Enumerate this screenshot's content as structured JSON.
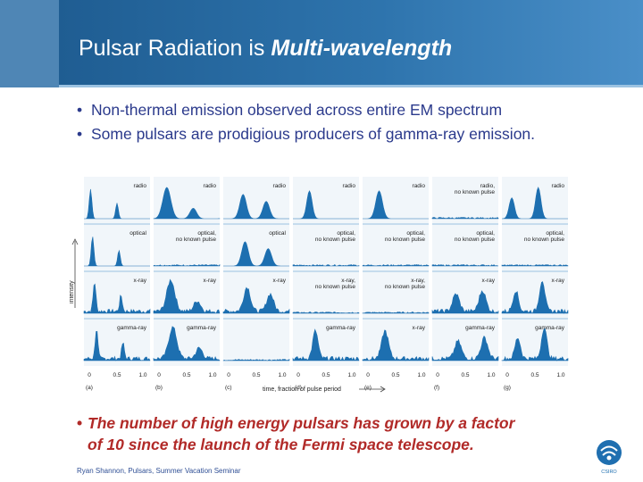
{
  "title": {
    "plain": "Pulsar Radiation is ",
    "emphasis": "Multi-wavelength"
  },
  "bullets": [
    "Non-thermal emission observed across entire EM spectrum",
    "Some pulsars are prodigious producers of gamma-ray emission."
  ],
  "bullet_symbol": "•",
  "figure": {
    "y_axis_label": "intensity",
    "x_axis_label": "time, fraction of pulse period",
    "tick_labels": [
      "0",
      "0.5",
      "1.0"
    ],
    "panel_letters": [
      "(a)",
      "(b)",
      "(c)",
      "(d)",
      "(e)",
      "(f)",
      "(g)"
    ],
    "panels": [
      [
        "radio",
        "optical",
        "x-ray",
        "gamma-ray"
      ],
      [
        "radio",
        "optical, no known pulse",
        "x-ray",
        "gamma-ray"
      ],
      [
        "radio",
        "optical",
        "x-ray",
        ""
      ],
      [
        "radio",
        "optical, no known pulse",
        "x-ray, no known pulse",
        "gamma-ray"
      ],
      [
        "radio",
        "optical, no known pulse",
        "x-ray, no known pulse",
        "x-ray"
      ],
      [
        "radio, no known pulse",
        "optical, no known pulse",
        "x-ray",
        "gamma-ray"
      ],
      [
        "radio",
        "optical, no known pulse",
        "x-ray",
        "gamma-ray"
      ]
    ],
    "colors": {
      "panel_bg": "#f1f6fa",
      "fill": "#1d6fb0",
      "divider": "#9cc2e0",
      "axis": "#444444"
    }
  },
  "bottom_bullet": {
    "line1": "The number of high energy pulsars has grown by a factor",
    "line2": "of 10 since the launch of the Fermi space telescope."
  },
  "footer": "Ryan Shannon, Pulsars, Summer Vacation Seminar",
  "logo_text": "CSIRO",
  "colors": {
    "title_bar": "#2e74ad",
    "bullet_text": "#2b3a8c",
    "highlight_text": "#b12a28"
  }
}
